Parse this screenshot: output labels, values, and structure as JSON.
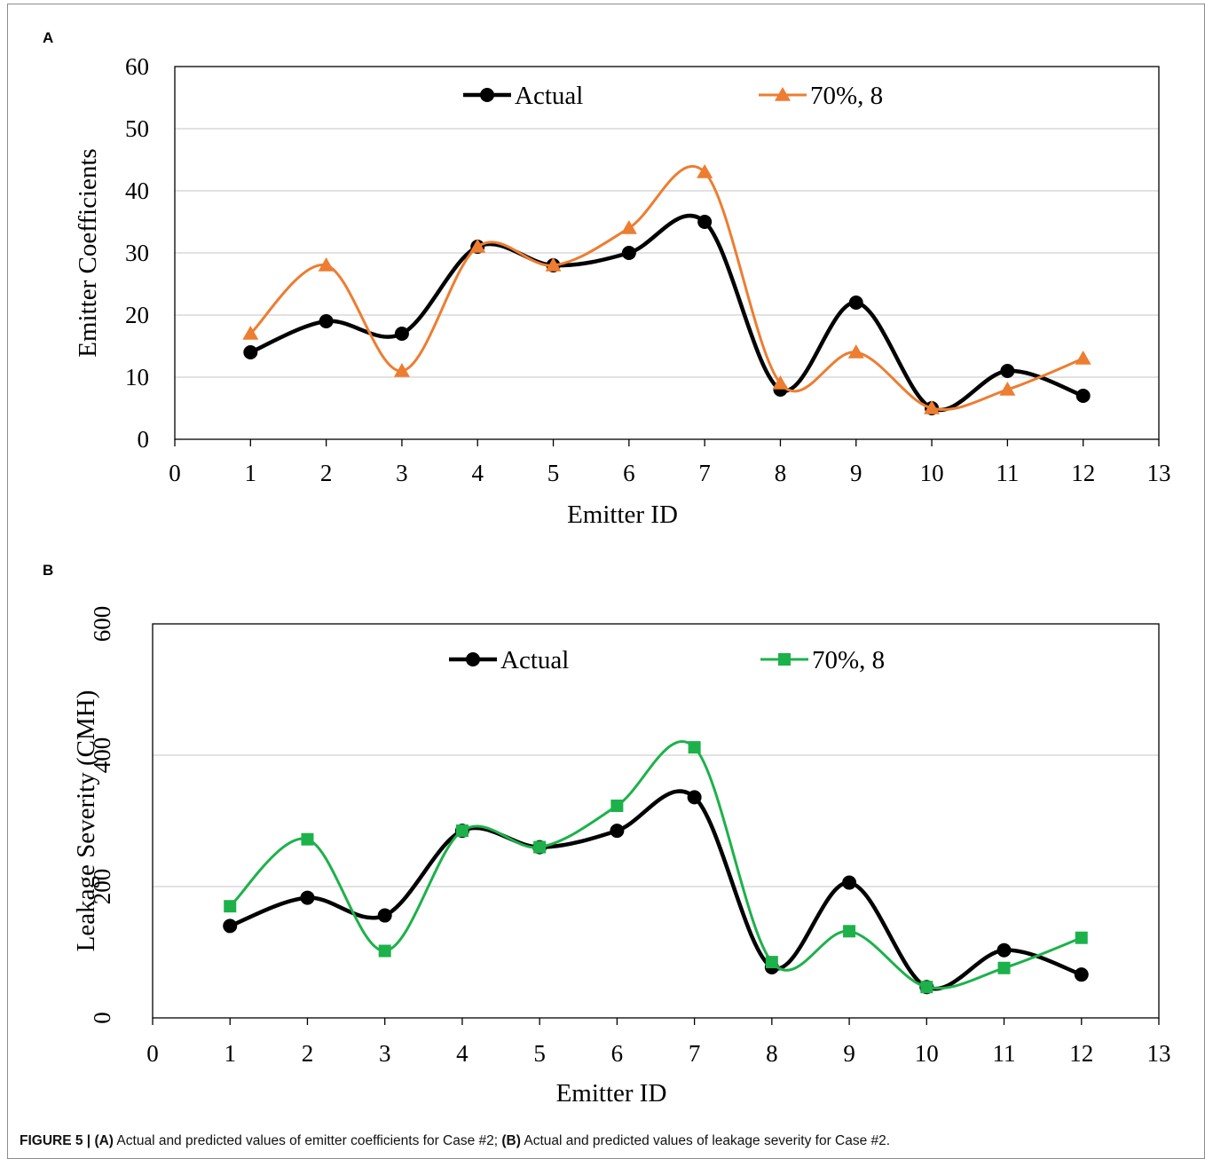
{
  "caption": {
    "figure_label": "FIGURE 5 |",
    "part_a_label": "(A)",
    "part_a_text": " Actual and predicted values of emitter coefficients for Case #2; ",
    "part_b_label": "(B)",
    "part_b_text": " Actual and predicted values of leakage severity for Case #2."
  },
  "colors": {
    "actual": "#000000",
    "predicted_a": "#ed7d31",
    "predicted_b": "#1db14b",
    "grid": "#d9d9d9"
  },
  "chart_data": [
    {
      "panel": "A",
      "type": "scatter",
      "smooth_lines": true,
      "xlabel": "Emitter ID",
      "ylabel": "Emitter Coefficients",
      "xlim": [
        0,
        13
      ],
      "ylim": [
        0,
        60
      ],
      "xticks": [
        0,
        1,
        2,
        3,
        4,
        5,
        6,
        7,
        8,
        9,
        10,
        11,
        12,
        13
      ],
      "yticks": [
        0,
        10,
        20,
        30,
        40,
        50,
        60
      ],
      "grid": "horizontal",
      "legend_position": "top",
      "series": [
        {
          "name": "Actual",
          "marker": "circle",
          "x": [
            1,
            2,
            3,
            4,
            5,
            6,
            7,
            8,
            9,
            10,
            11,
            12
          ],
          "y": [
            14,
            19,
            17,
            31,
            28,
            30,
            35,
            8,
            22,
            5,
            11,
            7
          ]
        },
        {
          "name": "70%, 8",
          "marker": "triangle",
          "x": [
            1,
            2,
            3,
            4,
            5,
            6,
            7,
            8,
            9,
            10,
            11,
            12
          ],
          "y": [
            17,
            28,
            11,
            31,
            28,
            34,
            43,
            9,
            14,
            5,
            8,
            13
          ]
        }
      ]
    },
    {
      "panel": "B",
      "type": "scatter",
      "smooth_lines": true,
      "xlabel": "Emitter ID",
      "ylabel": "Leakage Severity (CMH)",
      "xlim": [
        0,
        13
      ],
      "ylim": [
        0,
        600
      ],
      "xticks": [
        0,
        1,
        2,
        3,
        4,
        5,
        6,
        7,
        8,
        9,
        10,
        11,
        12,
        13
      ],
      "yticks": [
        0,
        200,
        400,
        600
      ],
      "ytick_rotation": -90,
      "grid": "horizontal",
      "legend_position": "top",
      "series": [
        {
          "name": "Actual",
          "marker": "circle",
          "x": [
            1,
            2,
            3,
            4,
            5,
            6,
            7,
            8,
            9,
            10,
            11,
            12
          ],
          "y": [
            140,
            183,
            156,
            285,
            260,
            285,
            336,
            77,
            206,
            47,
            103,
            66
          ]
        },
        {
          "name": "70%, 8",
          "marker": "square",
          "x": [
            1,
            2,
            3,
            4,
            5,
            6,
            7,
            8,
            9,
            10,
            11,
            12
          ],
          "y": [
            170,
            272,
            102,
            285,
            260,
            323,
            412,
            85,
            132,
            47,
            76,
            122
          ]
        }
      ]
    }
  ]
}
